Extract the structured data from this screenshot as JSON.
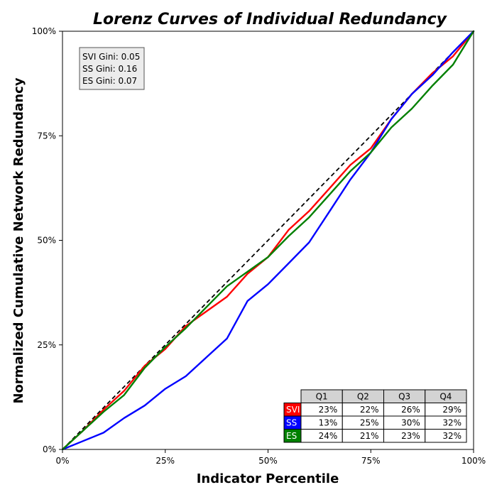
{
  "chart_data": {
    "type": "line",
    "title": "Lorenz Curves of Individual Redundancy",
    "xlabel": "Indicator Percentile",
    "ylabel": "Normalized Cumulative Network Redundancy",
    "xlim": [
      0,
      100
    ],
    "ylim": [
      0,
      100
    ],
    "x_ticks": [
      "0%",
      "25%",
      "50%",
      "75%",
      "100%"
    ],
    "y_ticks": [
      "0%",
      "25%",
      "50%",
      "75%",
      "100%"
    ],
    "grid": false,
    "equality_line": true,
    "gini_box": {
      "lines": [
        "SVI Gini: 0.05",
        "SS Gini: 0.16",
        "ES Gini: 0.07"
      ],
      "placement": "top-left"
    },
    "series": [
      {
        "name": "SVI",
        "color": "#ff0000",
        "x": [
          0,
          5,
          10,
          15,
          20,
          25,
          30,
          35,
          40,
          45,
          50,
          55,
          60,
          65,
          70,
          75,
          80,
          85,
          90,
          95,
          100
        ],
        "y": [
          0,
          4.5,
          9.5,
          14,
          20,
          24,
          29.5,
          33,
          36.5,
          42,
          46,
          52.5,
          57,
          62.5,
          68,
          72,
          79,
          85,
          90,
          94,
          100
        ]
      },
      {
        "name": "SS",
        "color": "#0000ff",
        "x": [
          0,
          5,
          10,
          15,
          20,
          25,
          30,
          35,
          40,
          45,
          50,
          55,
          60,
          65,
          70,
          75,
          80,
          85,
          90,
          95,
          100
        ],
        "y": [
          0,
          2,
          4,
          7.5,
          10.5,
          14.5,
          17.5,
          22,
          26.5,
          35.5,
          39.5,
          44.5,
          49.5,
          57,
          64.5,
          71,
          79,
          85,
          89.5,
          95,
          100
        ]
      },
      {
        "name": "ES",
        "color": "#008000",
        "x": [
          0,
          5,
          10,
          15,
          20,
          25,
          30,
          35,
          40,
          45,
          50,
          55,
          60,
          65,
          70,
          75,
          80,
          85,
          90,
          95,
          100
        ],
        "y": [
          0,
          4.5,
          9,
          13,
          19.5,
          24.5,
          29,
          34,
          39,
          42.5,
          46,
          51,
          55.5,
          61,
          66.5,
          71,
          77,
          81.5,
          87,
          92,
          100
        ]
      }
    ],
    "table": {
      "columns": [
        "Q1",
        "Q2",
        "Q3",
        "Q4"
      ],
      "rows": [
        {
          "label": "SVI",
          "color": "#ff0000",
          "values": [
            "23%",
            "22%",
            "26%",
            "29%"
          ]
        },
        {
          "label": "SS",
          "color": "#0000ff",
          "values": [
            "13%",
            "25%",
            "30%",
            "32%"
          ]
        },
        {
          "label": "ES",
          "color": "#008000",
          "values": [
            "24%",
            "21%",
            "23%",
            "32%"
          ]
        }
      ],
      "placement": "bottom-right"
    }
  }
}
